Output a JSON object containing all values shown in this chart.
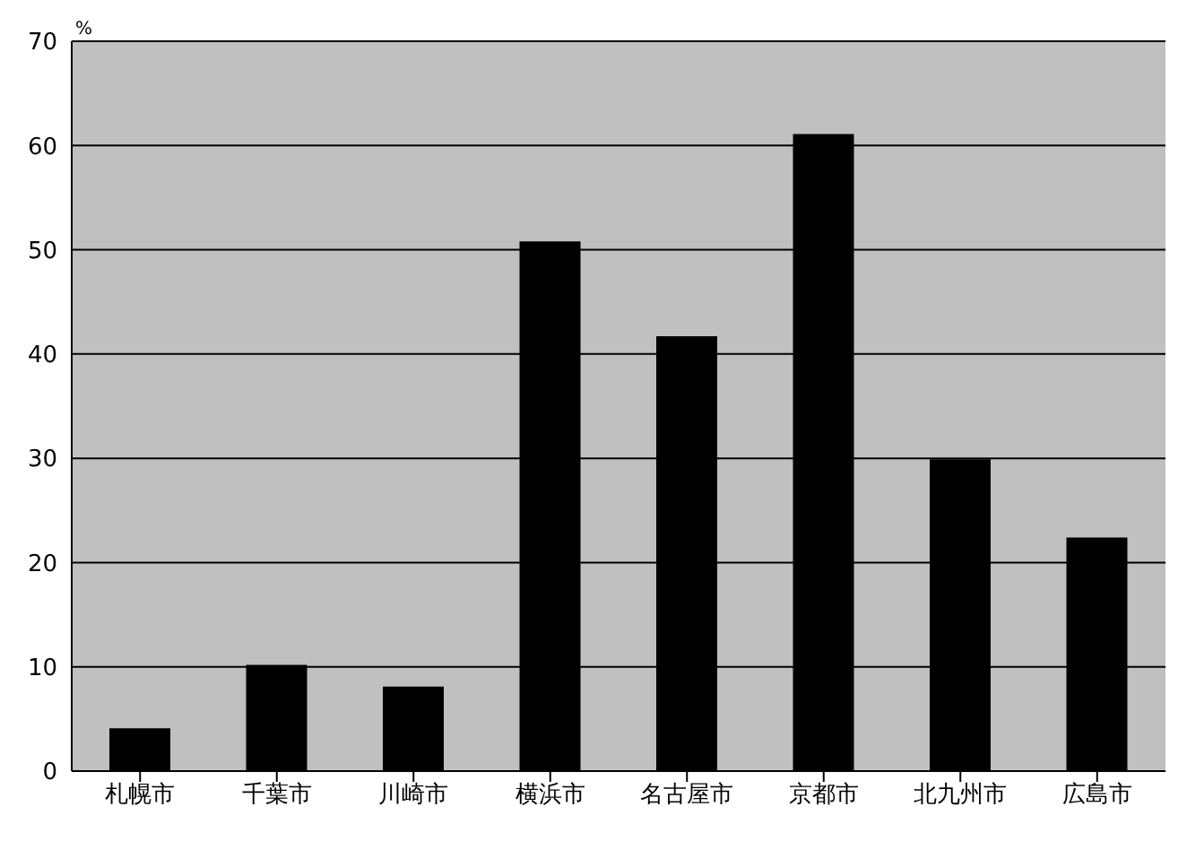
{
  "chart_data": {
    "type": "bar",
    "ylabel": "%",
    "categories": [
      "札幌市",
      "千葉市",
      "川崎市",
      "横浜市",
      "名古屋市",
      "京都市",
      "北九州市",
      "広島市"
    ],
    "values": [
      4.1,
      10.2,
      8.1,
      50.8,
      41.7,
      61.1,
      29.9,
      22.4
    ],
    "color": "#000000",
    "ylim": [
      0,
      70
    ],
    "yticks": [
      0,
      10,
      20,
      30,
      40,
      50,
      60,
      70
    ],
    "grid": "y"
  }
}
